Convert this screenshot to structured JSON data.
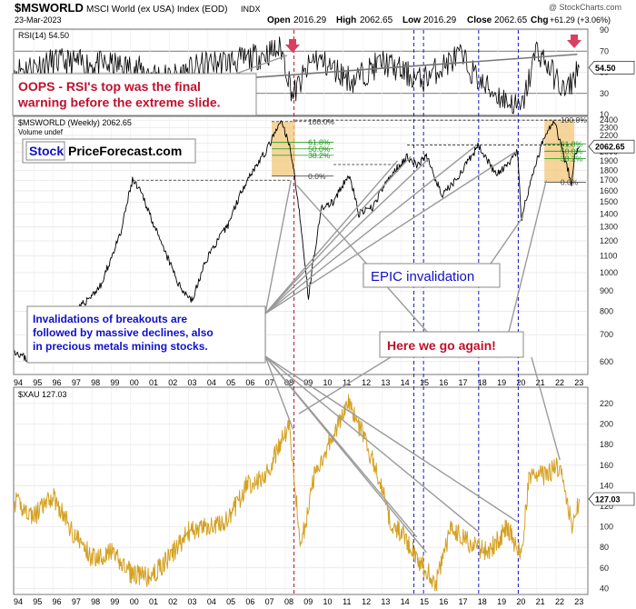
{
  "header": {
    "symbol": "$MSWORLD",
    "name": "MSCI World (ex USA) Index (EOD)",
    "exchange": "INDX",
    "date": "23-Mar-2023",
    "open_label": "Open",
    "open": "2016.29",
    "high_label": "High",
    "high": "2062.65",
    "low_label": "Low",
    "low": "2016.29",
    "close_label": "Close",
    "close": "2062.65",
    "chg_label": "Chg",
    "chg": "+61.29 (+3.06%)",
    "source": "@ StockCharts.com"
  },
  "chart_data": [
    {
      "type": "line",
      "panel": "rsi",
      "legend": "RSI(14) 54.50",
      "last_value_tag": "54.50",
      "ticks": [
        90,
        70,
        50,
        30,
        10
      ],
      "ylim": [
        10,
        90
      ],
      "reference_lines": [
        70,
        30
      ],
      "series": [
        {
          "values": [
            [
              1994,
              52
            ],
            [
              1996,
              60
            ],
            [
              1998,
              58
            ],
            [
              2000,
              55
            ],
            [
              2002,
              45
            ],
            [
              2004,
              58
            ],
            [
              2006,
              62
            ],
            [
              2007.8,
              72
            ],
            [
              2008.4,
              28
            ],
            [
              2009.5,
              64
            ],
            [
              2011.5,
              42
            ],
            [
              2013,
              60
            ],
            [
              2015,
              42
            ],
            [
              2017,
              66
            ],
            [
              2018.2,
              38
            ],
            [
              2020.2,
              14
            ],
            [
              2021,
              72
            ],
            [
              2022.5,
              30
            ],
            [
              2023.2,
              54.5
            ]
          ]
        }
      ]
    },
    {
      "type": "line",
      "panel": "msworld",
      "legend": "$MSWORLD (Weekly) 2062.65",
      "volume_label": "Volume undef",
      "last_value_tag": "2062.65",
      "scale": "log",
      "ticks": [
        2400,
        2300,
        2200,
        2100,
        2000,
        1900,
        1800,
        1700,
        1600,
        1500,
        1400,
        1300,
        1200,
        1100,
        1000,
        900,
        800,
        700,
        600
      ],
      "ylim": [
        560,
        2440
      ],
      "fib_labels": [
        "100.0%",
        "61.8%",
        "50.0%",
        "38.2%",
        "0.0%"
      ],
      "series": [
        {
          "name": "$MSWORLD",
          "values": [
            [
              1994,
              640
            ],
            [
              1994.7,
              605
            ],
            [
              1995.5,
              640
            ],
            [
              1996.5,
              720
            ],
            [
              1997.5,
              830
            ],
            [
              1998.5,
              930
            ],
            [
              1999.5,
              1250
            ],
            [
              2000.1,
              1700
            ],
            [
              2000.6,
              1560
            ],
            [
              2001.5,
              1200
            ],
            [
              2002.5,
              930
            ],
            [
              2003.2,
              850
            ],
            [
              2004,
              1100
            ],
            [
              2005,
              1300
            ],
            [
              2006,
              1700
            ],
            [
              2007,
              2000
            ],
            [
              2007.8,
              2380
            ],
            [
              2008.3,
              2000
            ],
            [
              2008.8,
              1300
            ],
            [
              2009.2,
              860
            ],
            [
              2009.9,
              1450
            ],
            [
              2010.5,
              1500
            ],
            [
              2011.3,
              1750
            ],
            [
              2011.8,
              1400
            ],
            [
              2012.5,
              1450
            ],
            [
              2013.3,
              1700
            ],
            [
              2014.3,
              1950
            ],
            [
              2014.8,
              1850
            ],
            [
              2015.3,
              1950
            ],
            [
              2016.1,
              1550
            ],
            [
              2016.8,
              1700
            ],
            [
              2017.5,
              1900
            ],
            [
              2018.0,
              2080
            ],
            [
              2018.9,
              1750
            ],
            [
              2019.5,
              1850
            ],
            [
              2020.0,
              2000
            ],
            [
              2020.2,
              1350
            ],
            [
              2020.8,
              1750
            ],
            [
              2021.5,
              2250
            ],
            [
              2021.9,
              2400
            ],
            [
              2022.4,
              1950
            ],
            [
              2022.8,
              1680
            ],
            [
              2023.0,
              1990
            ],
            [
              2023.2,
              2062.65
            ]
          ]
        }
      ]
    },
    {
      "type": "line",
      "panel": "xau",
      "legend": "$XAU 127.03",
      "last_value_tag": "127.03",
      "ticks": [
        220,
        200,
        180,
        160,
        140,
        120,
        100,
        80,
        60,
        40
      ],
      "ylim": [
        35,
        235
      ],
      "series": [
        {
          "name": "$XAU",
          "values": [
            [
              1994,
              125
            ],
            [
              1995,
              110
            ],
            [
              1996,
              130
            ],
            [
              1997,
              95
            ],
            [
              1998,
              70
            ],
            [
              1999,
              75
            ],
            [
              2000,
              55
            ],
            [
              2001,
              50
            ],
            [
              2002,
              70
            ],
            [
              2003,
              95
            ],
            [
              2004,
              100
            ],
            [
              2005,
              105
            ],
            [
              2006,
              140
            ],
            [
              2007,
              150
            ],
            [
              2008.2,
              200
            ],
            [
              2008.8,
              80
            ],
            [
              2009.5,
              150
            ],
            [
              2010.2,
              180
            ],
            [
              2011.3,
              220
            ],
            [
              2012,
              190
            ],
            [
              2012.8,
              150
            ],
            [
              2013.5,
              100
            ],
            [
              2014,
              95
            ],
            [
              2015,
              65
            ],
            [
              2015.8,
              45
            ],
            [
              2016.6,
              100
            ],
            [
              2017.5,
              85
            ],
            [
              2018.5,
              75
            ],
            [
              2019.5,
              100
            ],
            [
              2020.2,
              70
            ],
            [
              2020.6,
              150
            ],
            [
              2021.4,
              150
            ],
            [
              2022.3,
              160
            ],
            [
              2022.8,
              100
            ],
            [
              2023.2,
              127.03
            ]
          ]
        }
      ]
    }
  ],
  "x_axis": {
    "years": [
      "94",
      "95",
      "96",
      "97",
      "98",
      "99",
      "00",
      "01",
      "02",
      "03",
      "04",
      "05",
      "06",
      "07",
      "08",
      "09",
      "10",
      "11",
      "12",
      "13",
      "14",
      "15",
      "16",
      "17",
      "18",
      "19",
      "20",
      "21",
      "22",
      "23"
    ]
  },
  "annotations": {
    "rsi_warning": "OOPS - RSI's top was the final\nwarning before the extreme slide.",
    "logo_stock": "Stock",
    "logo_pf": "PriceForecast.com",
    "epic": "EPIC invalidation",
    "invalidations": "Invalidations of breakouts are\nfollowed by massive declines, also\nin precious metals mining stocks.",
    "here_we_go": "Here we go again!"
  },
  "colors": {
    "price": "#000000",
    "gold": "#d4a020",
    "red_text": "#c0102c",
    "blue_text": "#1010c8",
    "fib_box": "#f3c77a",
    "fib_line": "#1a9a1a",
    "arrow": "#d94060",
    "blue_line": "#1a1ad0",
    "red_line": "#c0102c"
  }
}
